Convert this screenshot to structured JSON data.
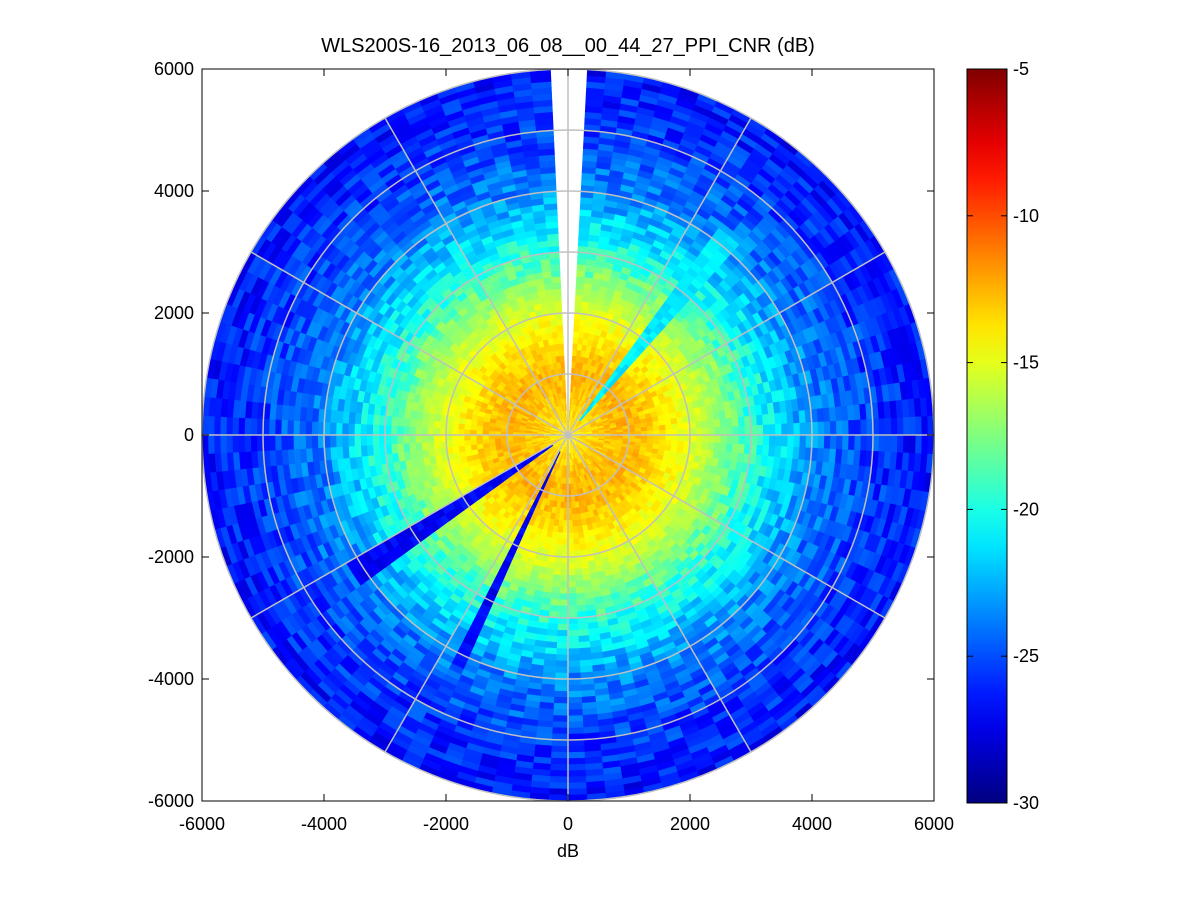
{
  "chart_data": {
    "type": "heatmap",
    "subtype": "polar-ppi",
    "title": "WLS200S-16_2013_06_08__00_44_27_PPI_CNR (dB)",
    "xlabel": "dB",
    "ylabel": "",
    "xlim": [
      -6000,
      6000
    ],
    "ylim": [
      -6000,
      6000
    ],
    "x_ticks": [
      -6000,
      -4000,
      -2000,
      0,
      2000,
      4000,
      6000
    ],
    "y_ticks": [
      -6000,
      -4000,
      -2000,
      0,
      2000,
      4000,
      6000
    ],
    "x_tick_labels": [
      "-6000",
      "-4000",
      "-2000",
      "0",
      "2000",
      "4000",
      "6000"
    ],
    "y_tick_labels": [
      "-6000",
      "-4000",
      "-2000",
      "0",
      "2000",
      "4000",
      "6000"
    ],
    "max_range": 6000,
    "range_rings": [
      1000,
      2000,
      3000,
      4000,
      5000,
      6000
    ],
    "radial_lines_deg": [
      0,
      30,
      60,
      90,
      120,
      150,
      180,
      210,
      240,
      270,
      300,
      330
    ],
    "grid": true,
    "colormap": "jet",
    "colorbar": {
      "min": -30,
      "max": -5,
      "ticks": [
        -5,
        -10,
        -15,
        -20,
        -25,
        -30
      ],
      "tick_labels": [
        "-5",
        "-10",
        "-15",
        "-20",
        "-25",
        "-30"
      ]
    },
    "radial_profile": {
      "range": [
        0,
        600,
        1000,
        1500,
        2000,
        2500,
        3000,
        3500,
        4000,
        4500,
        5000,
        5500,
        6000
      ],
      "cnr_db": [
        -14,
        -13,
        -12.5,
        -13.5,
        -15,
        -17,
        -19.5,
        -21.5,
        -23.5,
        -24.5,
        -25.5,
        -26,
        -26.5
      ]
    },
    "no_data_sectors_deg": [
      [
        -1.5,
        1.5
      ]
    ],
    "low_cnr_streaks": [
      {
        "azimuth_deg": 205,
        "cnr_db": -27
      },
      {
        "azimuth_deg": 237,
        "cnr_db": -27
      },
      {
        "azimuth_deg": 39,
        "cnr_db": -21
      }
    ]
  },
  "colors": {
    "grid": "#c0c0c0",
    "axes": "#000000",
    "background": "#ffffff"
  }
}
